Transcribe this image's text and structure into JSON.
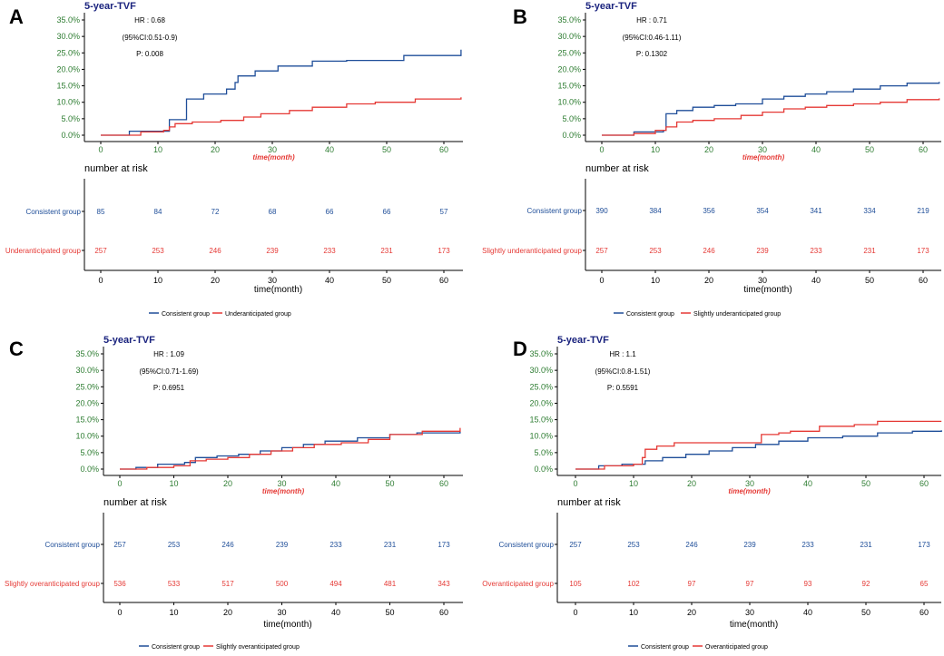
{
  "colors": {
    "consistent": "#1f4e99",
    "comparison": "#e53935",
    "axis": "#000000",
    "tick_text": "#2e7d32",
    "title": "#1a237e"
  },
  "chart_data": [
    {
      "panel": "A",
      "type": "line",
      "title": "5-year-TVF",
      "stats": {
        "hr": "HR : 0.68",
        "ci": "(95%CI:0.51-0.9)",
        "p": "P: 0.008"
      },
      "xlabel": "time(month)",
      "ylabel": "",
      "xlim": [
        0,
        63
      ],
      "ylim": [
        0,
        35
      ],
      "xticks": [
        "0",
        "10",
        "20",
        "30",
        "40",
        "50",
        "60"
      ],
      "yticks": [
        "0.0%",
        "5.0%",
        "10.0%",
        "15.0%",
        "20.0%",
        "25.0%",
        "30.0%",
        "35.0%"
      ],
      "series": [
        {
          "name": "Consistent group",
          "color": "#1f4e99",
          "x": [
            0,
            5,
            11.5,
            12,
            15,
            18,
            22,
            23.5,
            24,
            27,
            31,
            37,
            43,
            53,
            63
          ],
          "y": [
            0,
            1.2,
            1.2,
            4.7,
            11,
            12.5,
            14,
            16,
            18,
            19.5,
            21,
            22.5,
            22.7,
            24.2,
            26
          ]
        },
        {
          "name": "Underanticipated group",
          "color": "#e53935",
          "x": [
            0,
            7,
            11,
            12,
            13,
            16,
            21,
            25,
            28,
            33,
            37,
            43,
            48,
            55,
            63
          ],
          "y": [
            0,
            1,
            1.5,
            2.5,
            3.5,
            4,
            4.5,
            5.5,
            6.5,
            7.5,
            8.5,
            9.5,
            10,
            11,
            11.5
          ]
        }
      ],
      "risk_table": {
        "title": "number at risk",
        "xlabel": "time(month)",
        "rows": [
          {
            "group": "Consistent group",
            "color": "#1f4e99",
            "values": [
              "85",
              "84",
              "72",
              "68",
              "66",
              "66",
              "57"
            ]
          },
          {
            "group": "Underanticipated group",
            "color": "#e53935",
            "values": [
              "257",
              "253",
              "246",
              "239",
              "233",
              "231",
              "173"
            ]
          }
        ]
      },
      "legend": [
        "Consistent group",
        "Underanticipated group"
      ]
    },
    {
      "panel": "B",
      "type": "line",
      "title": "5-year-TVF",
      "stats": {
        "hr": "HR : 0.71",
        "ci": "(95%CI:0.46-1.11)",
        "p": "P: 0.1302"
      },
      "xlabel": "time(month)",
      "ylabel": "",
      "xlim": [
        0,
        63
      ],
      "ylim": [
        0,
        35
      ],
      "xticks": [
        "0",
        "10",
        "20",
        "30",
        "40",
        "50",
        "60"
      ],
      "yticks": [
        "0.0%",
        "5.0%",
        "10.0%",
        "15.0%",
        "20.0%",
        "25.0%",
        "30.0%",
        "35.0%"
      ],
      "series": [
        {
          "name": "Consistent group",
          "color": "#1f4e99",
          "x": [
            0,
            6,
            11.5,
            12,
            14,
            17,
            21,
            25,
            30,
            34,
            38,
            42,
            47,
            52,
            57,
            63
          ],
          "y": [
            0,
            1,
            1.5,
            6.5,
            7.5,
            8.5,
            9,
            9.5,
            11,
            11.8,
            12.5,
            13.2,
            14,
            15,
            15.8,
            16.2
          ]
        },
        {
          "name": "Slightly underanticipated group",
          "color": "#e53935",
          "x": [
            0,
            6,
            10,
            12,
            14,
            17,
            21,
            26,
            30,
            34,
            38,
            42,
            47,
            52,
            57,
            63
          ],
          "y": [
            0,
            0.5,
            1.5,
            2.5,
            4,
            4.5,
            5,
            6,
            7,
            8,
            8.5,
            9,
            9.5,
            10,
            10.8,
            11.2
          ]
        }
      ],
      "risk_table": {
        "title": "number at risk",
        "xlabel": "time(month)",
        "rows": [
          {
            "group": "Consistent group",
            "color": "#1f4e99",
            "values": [
              "390",
              "384",
              "356",
              "354",
              "341",
              "334",
              "219"
            ]
          },
          {
            "group": "Slightly underanticipated group",
            "color": "#e53935",
            "values": [
              "257",
              "253",
              "246",
              "239",
              "233",
              "231",
              "173"
            ]
          }
        ]
      },
      "legend": [
        "Consistent group",
        "Slightly underanticipated group"
      ]
    },
    {
      "panel": "C",
      "type": "line",
      "title": "5-year-TVF",
      "stats": {
        "hr": "HR : 1.09",
        "ci": "(95%CI:0.71-1.69)",
        "p": "P: 0.6951"
      },
      "xlabel": "time(month)",
      "ylabel": "",
      "xlim": [
        0,
        63
      ],
      "ylim": [
        0,
        35
      ],
      "xticks": [
        "0",
        "10",
        "20",
        "30",
        "40",
        "50",
        "60"
      ],
      "yticks": [
        "0.0%",
        "5.0%",
        "10.0%",
        "15.0%",
        "20.0%",
        "25.0%",
        "30.0%",
        "35.0%"
      ],
      "series": [
        {
          "name": "Consistent group",
          "color": "#1f4e99",
          "x": [
            0,
            3,
            7,
            12,
            14,
            18,
            22,
            26,
            30,
            34,
            38,
            44,
            50,
            55,
            63
          ],
          "y": [
            0,
            0.5,
            1.5,
            2,
            3.5,
            4,
            4.5,
            5.5,
            6.5,
            7.5,
            8.5,
            9.5,
            10.5,
            11,
            11.5
          ]
        },
        {
          "name": "Slightly overanticipated group",
          "color": "#e53935",
          "x": [
            0,
            5,
            10,
            13,
            16,
            20,
            24,
            28,
            32,
            36,
            41,
            46,
            50,
            56,
            63
          ],
          "y": [
            0,
            0.5,
            1,
            2.5,
            3,
            3.5,
            4.5,
            5.5,
            6.5,
            7.5,
            8,
            9,
            10.5,
            11.5,
            12.5
          ]
        }
      ],
      "risk_table": {
        "title": "number at risk",
        "xlabel": "time(month)",
        "rows": [
          {
            "group": "Consistent group",
            "color": "#1f4e99",
            "values": [
              "257",
              "253",
              "246",
              "239",
              "233",
              "231",
              "173"
            ]
          },
          {
            "group": "Slightly overanticipated group",
            "color": "#e53935",
            "values": [
              "536",
              "533",
              "517",
              "500",
              "494",
              "481",
              "343"
            ]
          }
        ]
      },
      "legend": [
        "Consistent group",
        "Slightly overanticipated group"
      ]
    },
    {
      "panel": "D",
      "type": "line",
      "title": "5-year-TVF",
      "stats": {
        "hr": "HR : 1.1",
        "ci": "(95%CI:0.8-1.51)",
        "p": "P: 0.5591"
      },
      "xlabel": "time(month)",
      "ylabel": "",
      "xlim": [
        0,
        63
      ],
      "ylim": [
        0,
        35
      ],
      "xticks": [
        "0",
        "10",
        "20",
        "30",
        "40",
        "50",
        "60"
      ],
      "yticks": [
        "0.0%",
        "5.0%",
        "10.0%",
        "15.0%",
        "20.0%",
        "25.0%",
        "30.0%",
        "35.0%"
      ],
      "series": [
        {
          "name": "Consistent group",
          "color": "#1f4e99",
          "x": [
            0,
            4,
            8,
            12,
            15,
            19,
            23,
            27,
            31,
            35,
            40,
            46,
            52,
            58,
            63
          ],
          "y": [
            0,
            1,
            1.5,
            2.5,
            3.5,
            4.5,
            5.5,
            6.5,
            7.5,
            8.5,
            9.5,
            10,
            11,
            11.5,
            11.8
          ]
        },
        {
          "name": "Overanticipated group",
          "color": "#e53935",
          "x": [
            0,
            5,
            10,
            11.5,
            12,
            14,
            17,
            31,
            32,
            35,
            37,
            42,
            48,
            52,
            63
          ],
          "y": [
            0,
            1,
            1.5,
            3.5,
            6,
            7,
            8,
            8,
            10.5,
            11,
            11.5,
            13,
            13.5,
            14.5,
            14.5
          ]
        }
      ],
      "risk_table": {
        "title": "number at risk",
        "xlabel": "time(month)",
        "rows": [
          {
            "group": "Consistent group",
            "color": "#1f4e99",
            "values": [
              "257",
              "253",
              "246",
              "239",
              "233",
              "231",
              "173"
            ]
          },
          {
            "group": "Overanticipated group",
            "color": "#e53935",
            "values": [
              "105",
              "102",
              "97",
              "97",
              "93",
              "92",
              "65"
            ]
          }
        ]
      },
      "legend": [
        "Consistent group",
        "Overanticipated group"
      ]
    }
  ]
}
